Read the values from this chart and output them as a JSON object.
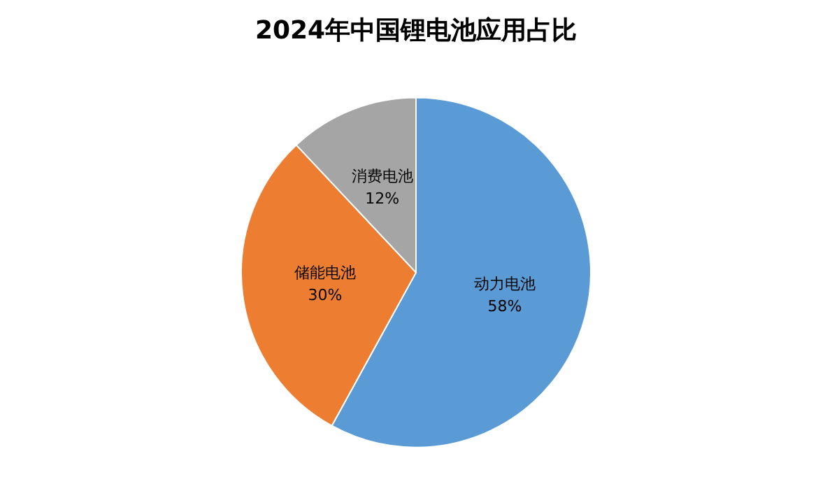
{
  "chart_data": {
    "type": "pie",
    "title": "2024年中国锂电池应用占比",
    "categories": [
      "动力电池",
      "储能电池",
      "消费电池"
    ],
    "values": [
      58,
      30,
      12
    ],
    "value_labels": [
      "58%",
      "30%",
      "12%"
    ],
    "colors": [
      "#5b9bd5",
      "#ed7d31",
      "#a5a5a5"
    ],
    "legend": false
  }
}
